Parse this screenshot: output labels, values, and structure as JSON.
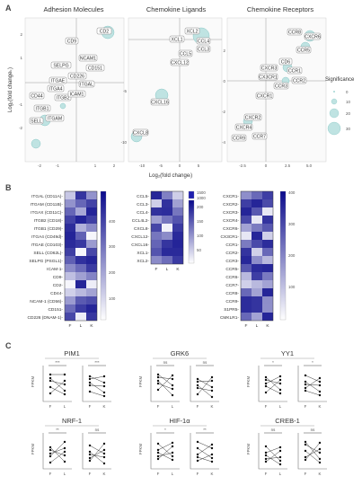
{
  "panel_labels": [
    "A",
    "B",
    "C"
  ],
  "panelA": {
    "titles": [
      "Adhesion Molecules",
      "Chemokine Ligands",
      "Chemokine Receptors"
    ],
    "ylabel": "Log₂(fold changeₖ)",
    "xlabel": "Log₂(fold changeₗ)",
    "legend": {
      "title": "Significance",
      "values": [
        "0",
        "10",
        "20",
        "30"
      ]
    },
    "adhesion": {
      "xticks": [
        "-2",
        "-1",
        "1",
        "2"
      ],
      "yticks": [
        "2",
        "1",
        "-1",
        "-2"
      ],
      "genes": [
        "CD2",
        "CD9",
        "NCAM1",
        "SELPG",
        "CD151",
        "ITGAE",
        "CD226",
        "ITGAL",
        "ITGB2",
        "ITGA4",
        "ICAM1",
        "CD44",
        "ITGB1",
        "ITGAM",
        "SELL"
      ]
    },
    "ligands": {
      "xticks": [
        "-10",
        "-5",
        "0",
        "5"
      ],
      "yticks": [
        "-5",
        "-10"
      ],
      "genes": [
        "XCL2",
        "XCL1",
        "CCL4",
        "CCL3",
        "CCL5",
        "CXCL12",
        "CXCL16",
        "CXCL8"
      ]
    },
    "receptors": {
      "xticks": [
        "-2.5",
        "0",
        "2.5",
        "5.0"
      ],
      "yticks": [
        "2",
        "0",
        "-2",
        "-4"
      ],
      "genes": [
        "CCR8",
        "CXCR6",
        "CCR5",
        "CD6",
        "CXCR3",
        "CCR1",
        "CX3CR1",
        "CCR2",
        "CCR3",
        "CXCR1",
        "CXCR2",
        "CXCR4",
        "CCR9",
        "CCR7"
      ]
    }
  },
  "panelB": {
    "col_labels": [
      "F",
      "L",
      "K"
    ],
    "adhesion_rows": [
      "ITGAL (CD11A)-",
      "ITGAM (CD11B)-",
      "ITGAX (CD11C)-",
      "ITGB2 (CD18)-",
      "ITGB1 (CD29)-",
      "ITGA4 (CD49d)-",
      "ITGAE (CD103)-",
      "SELL (CD62L)-",
      "SELPG (PSGL1)-",
      "ICAM-1-",
      "CD9-",
      "CD2-",
      "CD44-",
      "NCAM-1 (CD56)-",
      "CD151-",
      "CD226 (DNAM-1)-"
    ],
    "adhesion_scale": [
      "400",
      "300",
      "200",
      "100"
    ],
    "ligand_rows": [
      "CCL5-",
      "CCL3-",
      "CCL4-",
      "CCL4L2-",
      "CXCL8-",
      "CXCL12-",
      "CXCL16-",
      "XCL1-",
      "XCL2-"
    ],
    "ligand_scale_top": [
      "1500",
      "1000"
    ],
    "ligand_scale": [
      "200",
      "150",
      "100",
      "50"
    ],
    "receptor_rows": [
      "CXCR1-",
      "CXCR2-",
      "CXCR3-",
      "CXCR4-",
      "CXCR6-",
      "CX3CR1-",
      "CCR1-",
      "CCR2-",
      "CCR3-",
      "CCR5-",
      "CCR6-",
      "CCR7-",
      "CCR8-",
      "CCR9-",
      "S1PR5-",
      "CMKLR1-"
    ],
    "receptor_scale": [
      "400",
      "300",
      "200",
      "100"
    ]
  },
  "panelC": {
    "ylabel": "FPKM",
    "plots": [
      {
        "title": "PIM1",
        "sig": [
          "***",
          "***"
        ],
        "pairs": [
          "F",
          "L",
          "F",
          "K"
        ]
      },
      {
        "title": "GRK6",
        "sig": [
          "ns",
          "ns"
        ],
        "pairs": [
          "F",
          "L",
          "F",
          "K"
        ]
      },
      {
        "title": "YY1",
        "sig": [
          "*",
          "*"
        ],
        "pairs": [
          "F",
          "L",
          "F",
          "K"
        ]
      },
      {
        "title": "NRF-1",
        "sig": [
          "**",
          "ns"
        ],
        "pairs": [
          "F",
          "L",
          "F",
          "K"
        ]
      },
      {
        "title": "HIF-1α",
        "sig": [
          "*",
          "**"
        ],
        "pairs": [
          "F",
          "L",
          "F",
          "K"
        ]
      },
      {
        "title": "CREB-1",
        "sig": [
          "ns",
          "ns"
        ],
        "pairs": [
          "F",
          "L",
          "F",
          "K"
        ]
      }
    ]
  }
}
